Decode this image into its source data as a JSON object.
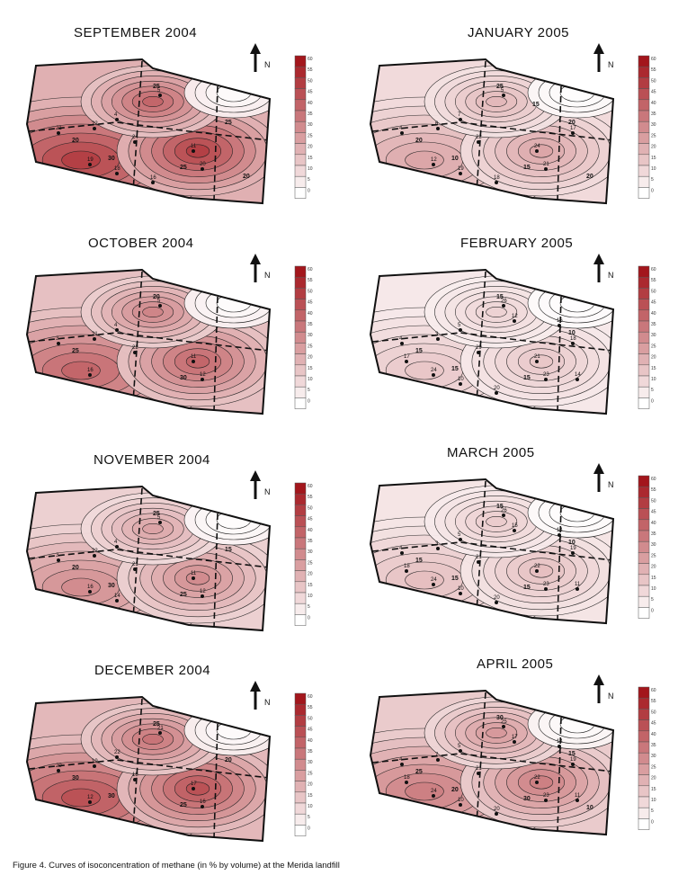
{
  "figure": {
    "caption": "Figure 4. Curves of isoconcentration of methane (in % by volume) at the Merida landfill",
    "north_label": "N",
    "legend_ticks": [
      "60",
      "55",
      "50",
      "45",
      "40",
      "35",
      "30",
      "25",
      "20",
      "15",
      "10",
      "5",
      "0"
    ],
    "colors": {
      "low": "#ffffff",
      "high": "#a3161c",
      "lines": "#222222"
    }
  },
  "panels": [
    {
      "id": "sep2004",
      "title": "SEPTEMBER 2004",
      "intensity": 0.75,
      "contour_labels": [
        "25",
        "20",
        "25",
        "30",
        "25",
        "20"
      ],
      "well_labels": [
        "5",
        "4",
        "21",
        "22",
        "24",
        "11",
        "20",
        "19",
        "18",
        "16"
      ]
    },
    {
      "id": "jan2005",
      "title": "JANUARY 2005",
      "intensity": 0.35,
      "contour_labels": [
        "25",
        "20",
        "15",
        "10",
        "20",
        "20",
        "15"
      ],
      "well_labels": [
        "5",
        "7",
        "4",
        "6",
        "22",
        "24",
        "21",
        "12",
        "19",
        "18",
        "17"
      ]
    },
    {
      "id": "oct2004",
      "title": "OCTOBER 2004",
      "intensity": 0.6,
      "contour_labels": [
        "20",
        "25",
        "30"
      ],
      "well_labels": [
        "5",
        "4",
        "3",
        "21",
        "22",
        "11",
        "12",
        "16"
      ]
    },
    {
      "id": "feb2005",
      "title": "FEBRUARY 2005",
      "intensity": 0.22,
      "contour_labels": [
        "15",
        "15",
        "15",
        "15",
        "10"
      ],
      "well_labels": [
        "26",
        "5",
        "4",
        "3",
        "29",
        "21",
        "23",
        "24",
        "10",
        "20",
        "18",
        "17",
        "12",
        "16",
        "14"
      ]
    },
    {
      "id": "nov2004",
      "title": "NOVEMBER 2004",
      "intensity": 0.45,
      "contour_labels": [
        "25",
        "20",
        "25",
        "30",
        "15"
      ],
      "well_labels": [
        "5",
        "4",
        "3",
        "22",
        "21",
        "11",
        "12",
        "16",
        "14"
      ]
    },
    {
      "id": "mar2005",
      "title": "MARCH 2005",
      "intensity": 0.25,
      "contour_labels": [
        "15",
        "15",
        "15",
        "15",
        "10"
      ],
      "well_labels": [
        "26",
        "5",
        "4",
        "3",
        "21",
        "22",
        "23",
        "24",
        "10",
        "20",
        "19",
        "18",
        "15",
        "14",
        "11"
      ]
    },
    {
      "id": "dec2004",
      "title": "DECEMBER 2004",
      "intensity": 0.68,
      "contour_labels": [
        "25",
        "30",
        "25",
        "30",
        "20"
      ],
      "well_labels": [
        "21",
        "22",
        "20",
        "19",
        "18",
        "17",
        "16",
        "12"
      ]
    },
    {
      "id": "apr2005",
      "title": "APRIL 2005",
      "intensity": 0.5,
      "contour_labels": [
        "30",
        "25",
        "30",
        "20",
        "15",
        "10"
      ],
      "well_labels": [
        "25",
        "5",
        "4",
        "7",
        "21",
        "22",
        "23",
        "24",
        "10",
        "20",
        "19",
        "18",
        "17",
        "14",
        "11"
      ]
    }
  ]
}
